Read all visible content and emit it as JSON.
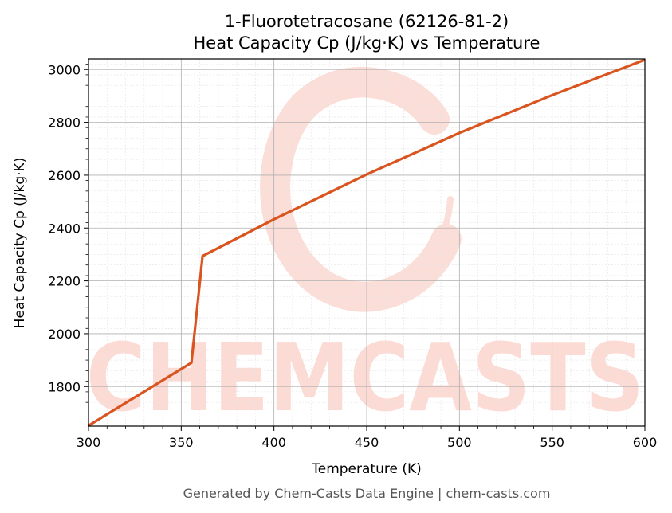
{
  "chart_data": {
    "type": "line",
    "title_line1": "1-Fluorotetracosane (62126-81-2)",
    "title_line2": "Heat Capacity Cp (J/kg·K) vs Temperature",
    "xlabel": "Temperature (K)",
    "ylabel": "Heat Capacity Cp (J/kg·K)",
    "xlim": [
      300,
      600
    ],
    "ylim": [
      1650,
      3040
    ],
    "xticks": [
      300,
      350,
      400,
      450,
      500,
      550,
      600
    ],
    "yticks": [
      1800,
      2000,
      2200,
      2400,
      2600,
      2800,
      3000
    ],
    "grid": true,
    "line_color": "#d9541e",
    "series": [
      {
        "x": [
          300,
          355.5,
          361.5,
          400,
          450,
          500,
          550,
          600
        ],
        "y": [
          1652,
          1890,
          2294,
          2433,
          2603,
          2760,
          2903,
          3037
        ]
      }
    ]
  },
  "watermark": "CHEMCASTS",
  "footer": "Generated by Chem-Casts Data Engine | chem-casts.com"
}
